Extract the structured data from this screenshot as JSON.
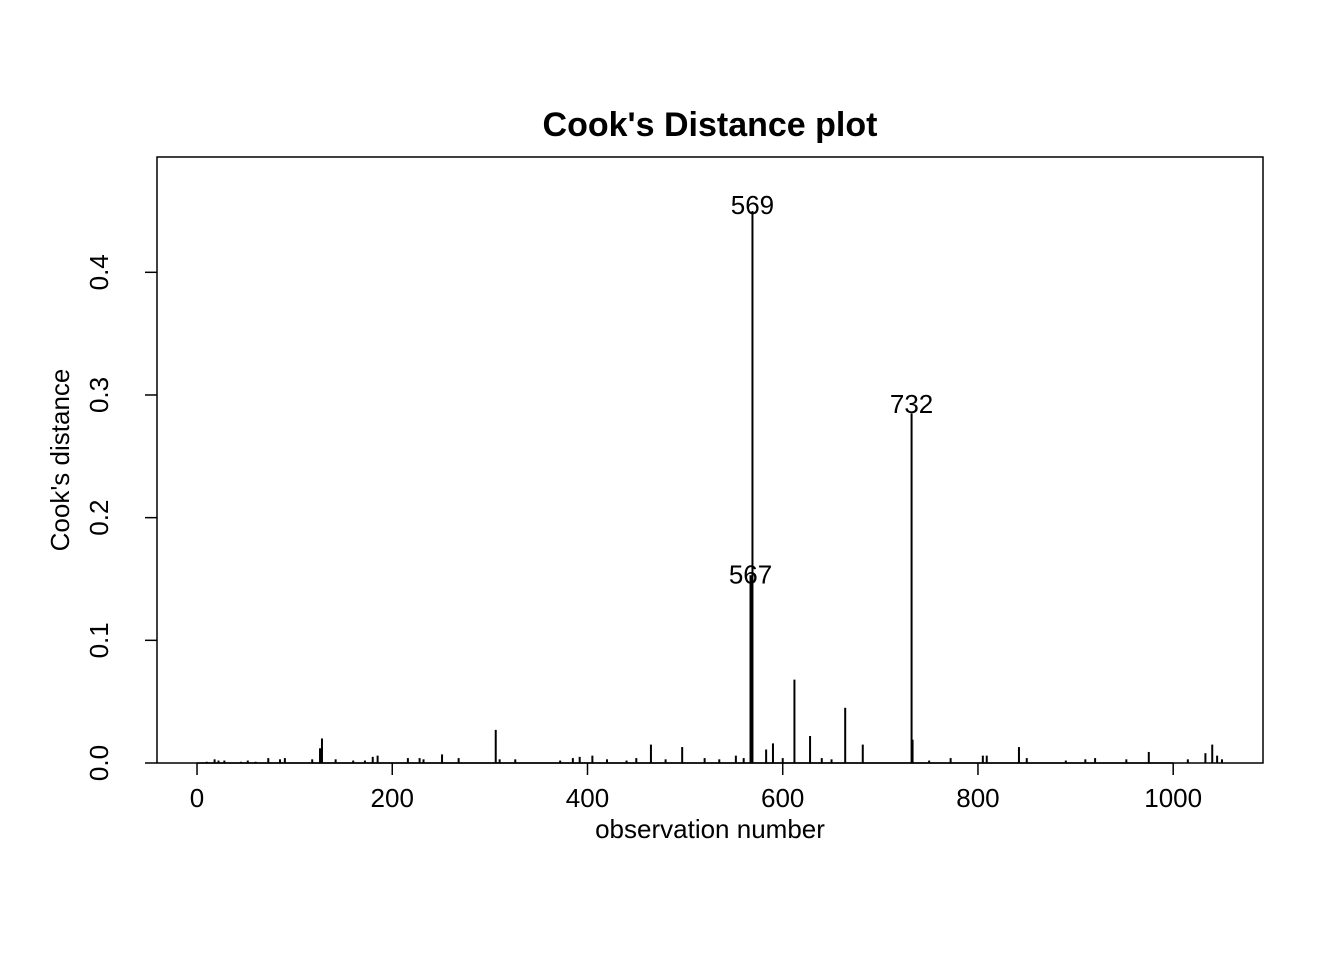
{
  "chart_data": {
    "type": "spike",
    "title": "Cook's Distance plot",
    "xlabel": "observation number",
    "ylabel": "Cook's distance",
    "x": [
      10,
      18,
      22,
      28,
      45,
      52,
      60,
      73,
      85,
      90,
      118,
      126,
      128,
      142,
      160,
      172,
      180,
      185,
      216,
      228,
      232,
      251,
      268,
      306,
      310,
      326,
      372,
      385,
      392,
      405,
      420,
      440,
      450,
      465,
      480,
      497,
      520,
      535,
      552,
      560,
      567,
      568,
      569,
      583,
      590,
      600,
      612,
      628,
      640,
      650,
      664,
      682,
      732,
      733,
      750,
      772,
      805,
      809,
      842,
      850,
      890,
      910,
      920,
      952,
      975,
      1015,
      1033,
      1040,
      1045,
      1050
    ],
    "values": [
      0.001,
      0.003,
      0.002,
      0.002,
      0.001,
      0.002,
      0.001,
      0.004,
      0.003,
      0.004,
      0.003,
      0.012,
      0.02,
      0.003,
      0.002,
      0.002,
      0.005,
      0.006,
      0.004,
      0.004,
      0.003,
      0.007,
      0.004,
      0.027,
      0.003,
      0.003,
      0.002,
      0.004,
      0.005,
      0.006,
      0.003,
      0.002,
      0.004,
      0.015,
      0.003,
      0.013,
      0.004,
      0.003,
      0.006,
      0.004,
      0.153,
      0.104,
      0.45,
      0.011,
      0.016,
      0.004,
      0.068,
      0.022,
      0.004,
      0.003,
      0.045,
      0.015,
      0.285,
      0.019,
      0.002,
      0.004,
      0.006,
      0.006,
      0.013,
      0.004,
      0.002,
      0.003,
      0.004,
      0.003,
      0.009,
      0.003,
      0.008,
      0.015,
      0.006,
      0.003
    ],
    "color": "#000000",
    "annotations": [
      {
        "label": "569",
        "x": 569,
        "y": 0.453
      },
      {
        "label": "732",
        "x": 732,
        "y": 0.291
      },
      {
        "label": "567",
        "x": 567,
        "y": 0.152
      }
    ],
    "xlim": [
      -41,
      1092
    ],
    "ylim": [
      0,
      0.494
    ],
    "xticks": [
      0,
      200,
      400,
      600,
      800,
      1000
    ],
    "yticks": [
      {
        "value": 0,
        "label": "0.0"
      },
      0.1,
      0.2,
      0.3,
      0.4
    ]
  }
}
